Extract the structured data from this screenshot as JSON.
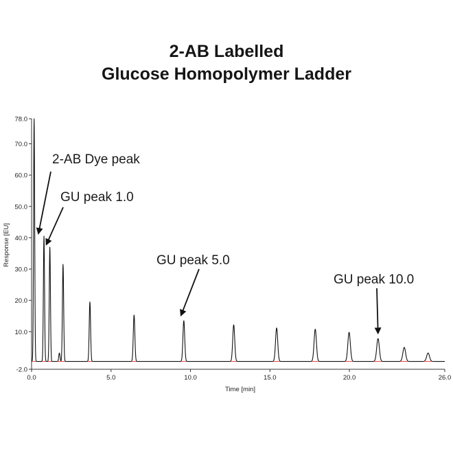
{
  "chart_data": {
    "type": "line",
    "title": [
      "2-AB Labelled",
      "Glucose Homopolymer Ladder"
    ],
    "xlabel": "Time [min]",
    "ylabel": "Response [EU]",
    "xlim": [
      0.0,
      26.0
    ],
    "ylim": [
      -2.0,
      78.0
    ],
    "x_ticks": [
      0.0,
      5.0,
      10.0,
      15.0,
      20.0,
      26.0
    ],
    "x_tick_labels": [
      "0.0",
      "5.0",
      "10.0",
      "15.0",
      "20.0",
      "26.0"
    ],
    "y_ticks": [
      -2.0,
      10.0,
      20.0,
      30.0,
      40.0,
      50.0,
      60.0,
      70.0,
      78.0
    ],
    "y_tick_labels": [
      "-2.0",
      "10.0",
      "20.0",
      "30.0",
      "40.0",
      "50.0",
      "60.0",
      "70.0",
      "78.0"
    ],
    "grid": false,
    "baseline": 0.5,
    "colors": {
      "trace": "#111111",
      "baseline_marks": "#e04040"
    },
    "series": [
      {
        "peaks": [
          {
            "time": 0.16,
            "height": 78.0
          },
          {
            "time": 0.78,
            "height": 40.5
          },
          {
            "time": 1.15,
            "height": 37.0
          },
          {
            "time": 1.75,
            "height": 3.2
          },
          {
            "time": 1.98,
            "height": 31.5
          },
          {
            "time": 3.67,
            "height": 19.5
          },
          {
            "time": 6.45,
            "height": 15.3
          },
          {
            "time": 9.58,
            "height": 13.5
          },
          {
            "time": 12.72,
            "height": 12.2
          },
          {
            "time": 15.42,
            "height": 11.2
          },
          {
            "time": 17.85,
            "height": 10.8
          },
          {
            "time": 19.98,
            "height": 9.8
          },
          {
            "time": 21.8,
            "height": 7.8
          },
          {
            "time": 23.45,
            "height": 5.0
          },
          {
            "time": 24.95,
            "height": 3.2
          }
        ]
      }
    ],
    "annotations": [
      {
        "text": "2-AB Dye peak",
        "target_time": 0.78,
        "target_height": 40.5
      },
      {
        "text": "GU peak 1.0",
        "target_time": 1.15,
        "target_height": 37.0
      },
      {
        "text": "GU peak 5.0",
        "target_time": 9.58,
        "target_height": 13.5
      },
      {
        "text": "GU peak 10.0",
        "target_time": 21.8,
        "target_height": 7.8
      }
    ]
  }
}
